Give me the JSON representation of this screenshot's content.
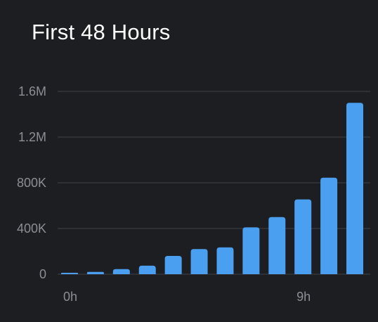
{
  "title": "First 48 Hours",
  "colors": {
    "background": "#1d1e22",
    "bar": "#4a9ff0",
    "grid": "#3a3b40",
    "tick_text": "#8c8e94",
    "title_text": "#ffffff"
  },
  "chart_data": {
    "type": "bar",
    "title": "First 48 Hours",
    "xlabel": "",
    "ylabel": "",
    "ylim": [
      0,
      1600000
    ],
    "grid": true,
    "y_ticks": [
      {
        "value": 0,
        "label": "0"
      },
      {
        "value": 400000,
        "label": "400K"
      },
      {
        "value": 800000,
        "label": "800K"
      },
      {
        "value": 1200000,
        "label": "1.2M"
      },
      {
        "value": 1600000,
        "label": "1.6M"
      }
    ],
    "x_tick_labels": [
      {
        "index": 0,
        "label": "0h"
      },
      {
        "index": 9,
        "label": "9h"
      }
    ],
    "values": [
      5000,
      20000,
      45000,
      75000,
      160000,
      220000,
      235000,
      410000,
      500000,
      655000,
      845000,
      1500000
    ]
  }
}
